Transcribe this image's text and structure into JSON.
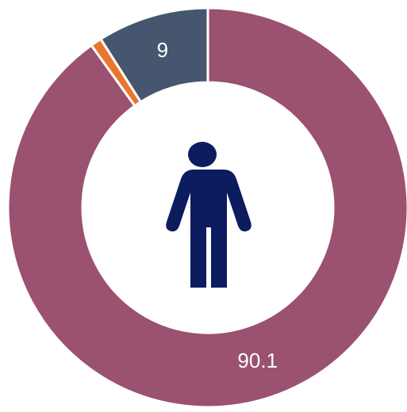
{
  "chart_data": {
    "type": "donut",
    "values": [
      90.1,
      0.9,
      9.0
    ],
    "colors": [
      "#9b5170",
      "#e8772e",
      "#46566f"
    ]
  }
}
